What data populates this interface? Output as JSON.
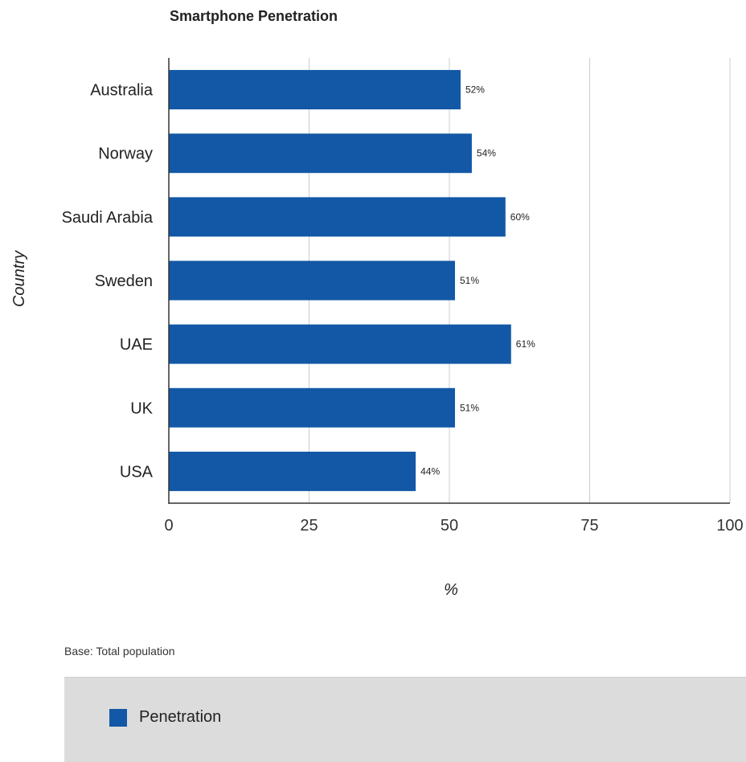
{
  "chart_data": {
    "type": "bar",
    "orientation": "horizontal",
    "title": "Smartphone Penetration",
    "xlabel": "%",
    "ylabel": "Country",
    "xlim": [
      0,
      100
    ],
    "xticks": [
      0,
      25,
      50,
      75,
      100
    ],
    "categories": [
      "Australia",
      "Norway",
      "Saudi Arabia",
      "Sweden",
      "UAE",
      "UK",
      "USA"
    ],
    "series": [
      {
        "name": "Penetration",
        "values": [
          52,
          54,
          60,
          51,
          61,
          51,
          44
        ],
        "labels": [
          "52%",
          "54%",
          "60%",
          "51%",
          "61%",
          "51%",
          "44%"
        ],
        "color": "#1258a6"
      }
    ],
    "grid": true,
    "legend_position": "bottom"
  },
  "footnote": "Base: Total population"
}
